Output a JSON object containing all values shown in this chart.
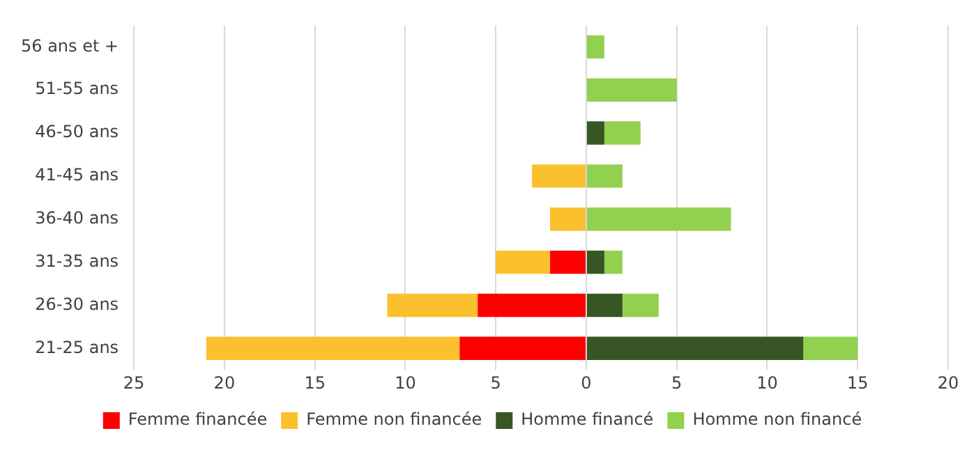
{
  "chart_data": {
    "type": "bar",
    "orientation": "horizontal",
    "stacked": true,
    "categories": [
      "56 ans et +",
      "51-55 ans",
      "46-50 ans",
      "41-45 ans",
      "36-40 ans",
      "31-35 ans",
      "26-30 ans",
      "21-25 ans"
    ],
    "series": [
      {
        "name": "Femme financée",
        "color": "#ff0000",
        "values": [
          null,
          null,
          null,
          null,
          null,
          -2,
          -6,
          -7
        ]
      },
      {
        "name": "Femme non financée",
        "color": "#fbc02d",
        "values": [
          null,
          null,
          null,
          -3,
          -2,
          -3,
          -5,
          -14
        ]
      },
      {
        "name": "Homme financé",
        "color": "#375623",
        "values": [
          null,
          null,
          1,
          null,
          null,
          1,
          2,
          12
        ]
      },
      {
        "name": "Homme non financé",
        "color": "#92d050",
        "values": [
          1,
          5,
          2,
          2,
          8,
          1,
          2,
          3
        ]
      }
    ],
    "xlim": [
      -25,
      20
    ],
    "xticks": [
      {
        "value": -25,
        "label": "25"
      },
      {
        "value": -20,
        "label": "20"
      },
      {
        "value": -15,
        "label": "15"
      },
      {
        "value": -10,
        "label": "10"
      },
      {
        "value": -5,
        "label": "5"
      },
      0,
      5,
      10,
      15,
      20
    ],
    "grid": "x",
    "legend": "bottom"
  }
}
